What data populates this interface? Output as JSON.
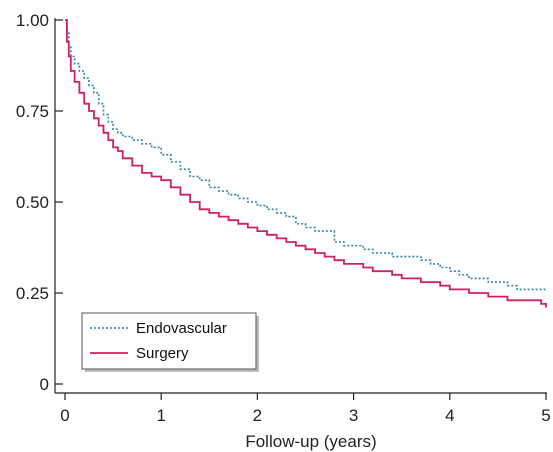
{
  "chart_data": {
    "type": "line",
    "title": "",
    "xlabel": "Follow-up (years)",
    "ylabel": "",
    "xlim": [
      0,
      5
    ],
    "ylim": [
      0,
      1
    ],
    "x_ticks": [
      0,
      1,
      2,
      3,
      4,
      5
    ],
    "x_tick_labels": [
      "0",
      "1",
      "2",
      "3",
      "4",
      "5"
    ],
    "y_ticks": [
      0,
      0.25,
      0.5,
      0.75,
      1.0
    ],
    "y_tick_labels": [
      "0",
      "0.25",
      "0.50",
      "0.75",
      "1.00"
    ],
    "grid": false,
    "legend_position": "bottom-left",
    "step": true,
    "series": [
      {
        "name": "Endovascular",
        "color": "#2f86b0",
        "dash": "dotted",
        "x": [
          0,
          0.02,
          0.04,
          0.06,
          0.1,
          0.15,
          0.2,
          0.25,
          0.3,
          0.35,
          0.4,
          0.45,
          0.5,
          0.55,
          0.6,
          0.7,
          0.8,
          0.9,
          1.0,
          1.1,
          1.2,
          1.3,
          1.4,
          1.5,
          1.6,
          1.7,
          1.8,
          1.9,
          2.0,
          2.1,
          2.2,
          2.3,
          2.4,
          2.5,
          2.6,
          2.7,
          2.75,
          2.8,
          2.9,
          3.0,
          3.1,
          3.2,
          3.3,
          3.4,
          3.5,
          3.6,
          3.7,
          3.8,
          3.9,
          4.0,
          4.1,
          4.2,
          4.3,
          4.4,
          4.5,
          4.6,
          4.65,
          4.7,
          4.8,
          4.9,
          5.0
        ],
        "y": [
          1.0,
          0.97,
          0.93,
          0.9,
          0.88,
          0.86,
          0.84,
          0.82,
          0.8,
          0.77,
          0.74,
          0.72,
          0.7,
          0.69,
          0.68,
          0.67,
          0.66,
          0.65,
          0.63,
          0.61,
          0.59,
          0.57,
          0.56,
          0.54,
          0.53,
          0.52,
          0.51,
          0.5,
          0.49,
          0.48,
          0.47,
          0.46,
          0.44,
          0.43,
          0.42,
          0.42,
          0.42,
          0.39,
          0.38,
          0.38,
          0.37,
          0.36,
          0.36,
          0.35,
          0.35,
          0.35,
          0.34,
          0.33,
          0.32,
          0.31,
          0.3,
          0.29,
          0.29,
          0.28,
          0.28,
          0.27,
          0.27,
          0.26,
          0.26,
          0.26,
          0.26
        ]
      },
      {
        "name": "Surgery",
        "color": "#d21f63",
        "dash": "solid",
        "x": [
          0,
          0.02,
          0.04,
          0.06,
          0.1,
          0.15,
          0.2,
          0.25,
          0.3,
          0.35,
          0.4,
          0.45,
          0.5,
          0.55,
          0.6,
          0.7,
          0.8,
          0.9,
          1.0,
          1.1,
          1.2,
          1.3,
          1.4,
          1.5,
          1.6,
          1.7,
          1.8,
          1.9,
          2.0,
          2.1,
          2.2,
          2.3,
          2.4,
          2.5,
          2.6,
          2.7,
          2.8,
          2.9,
          3.0,
          3.1,
          3.2,
          3.3,
          3.4,
          3.5,
          3.6,
          3.7,
          3.8,
          3.9,
          4.0,
          4.1,
          4.2,
          4.3,
          4.4,
          4.5,
          4.6,
          4.7,
          4.8,
          4.9,
          4.95,
          5.0
        ],
        "y": [
          1.0,
          0.94,
          0.9,
          0.86,
          0.83,
          0.8,
          0.77,
          0.75,
          0.73,
          0.71,
          0.69,
          0.67,
          0.65,
          0.64,
          0.62,
          0.6,
          0.58,
          0.57,
          0.56,
          0.54,
          0.52,
          0.5,
          0.48,
          0.47,
          0.46,
          0.45,
          0.44,
          0.43,
          0.42,
          0.41,
          0.4,
          0.39,
          0.38,
          0.37,
          0.36,
          0.35,
          0.34,
          0.33,
          0.33,
          0.32,
          0.31,
          0.31,
          0.3,
          0.29,
          0.29,
          0.28,
          0.28,
          0.27,
          0.26,
          0.26,
          0.25,
          0.25,
          0.24,
          0.24,
          0.23,
          0.23,
          0.23,
          0.23,
          0.22,
          0.21
        ]
      }
    ]
  }
}
